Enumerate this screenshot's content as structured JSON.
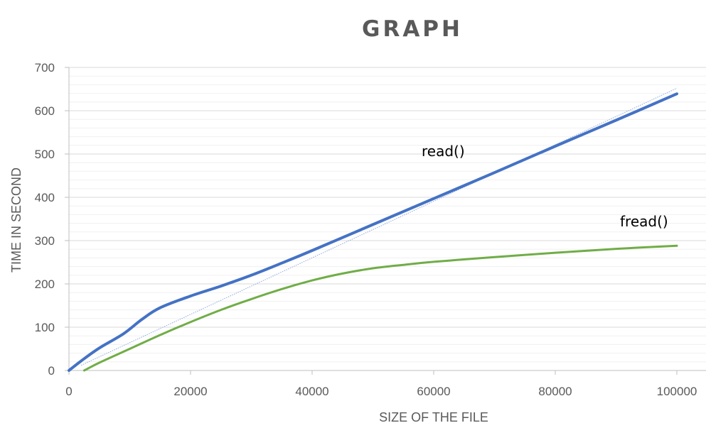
{
  "chart_data": {
    "type": "line",
    "title": "GRAPH",
    "xlabel": "SIZE OF THE FILE",
    "ylabel": "TIME IN SECOND",
    "xlim": [
      0,
      100000
    ],
    "ylim": [
      0,
      700
    ],
    "xticks": [
      "0",
      "20000",
      "40000",
      "60000",
      "80000",
      "100000"
    ],
    "yticks": [
      "0",
      "100",
      "200",
      "300",
      "400",
      "500",
      "600",
      "700"
    ],
    "xtick_values": [
      0,
      20000,
      40000,
      60000,
      80000,
      100000
    ],
    "ytick_values": [
      0,
      100,
      200,
      300,
      400,
      500,
      600,
      700
    ],
    "grid": "horizontal major and minor",
    "legend": "none",
    "series": [
      {
        "name": "read()",
        "color": "#4472C4",
        "x": [
          0,
          2000,
          5000,
          9000,
          12000,
          15000,
          20000,
          25000,
          30000,
          35000,
          40000,
          50000,
          60000,
          70000,
          80000,
          90000,
          100000
        ],
        "y": [
          0,
          22,
          52,
          85,
          118,
          145,
          172,
          195,
          220,
          248,
          277,
          337,
          397,
          457,
          518,
          578,
          639
        ]
      },
      {
        "name": "fread()",
        "color": "#70AD47",
        "x": [
          2500,
          5000,
          10000,
          15000,
          20000,
          25000,
          30000,
          35000,
          40000,
          45000,
          50000,
          55000,
          60000,
          70000,
          80000,
          90000,
          100000
        ],
        "y": [
          0,
          18,
          50,
          82,
          112,
          140,
          165,
          188,
          208,
          224,
          236,
          244,
          251,
          262,
          272,
          281,
          288
        ]
      }
    ],
    "trendline": {
      "color": "#8EA9DB",
      "style": "dotted",
      "x": [
        2000,
        100000
      ],
      "y": [
        12,
        652
      ]
    }
  }
}
